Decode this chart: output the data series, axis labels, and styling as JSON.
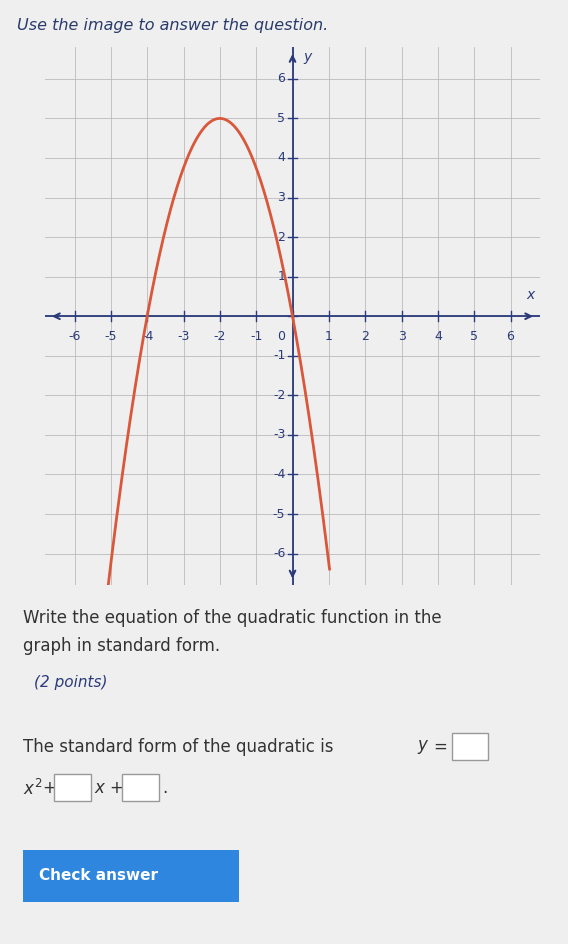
{
  "xlim": [
    -6.8,
    6.8
  ],
  "ylim": [
    -6.8,
    6.8
  ],
  "xticks": [
    -6,
    -5,
    -4,
    -3,
    -2,
    -1,
    0,
    1,
    2,
    3,
    4,
    5,
    6
  ],
  "yticks": [
    -6,
    -5,
    -4,
    -3,
    -2,
    -1,
    0,
    1,
    2,
    3,
    4,
    5,
    6
  ],
  "curve_color": "#d9573a",
  "curve_linewidth": 2.0,
  "a": -1.25,
  "b": -5.0,
  "c": 0.0,
  "x_range": [
    -5.85,
    1.02
  ],
  "background_color": "#efefef",
  "graph_bg": "#e8e8e8",
  "grid_color": "#bbbbbb",
  "axis_color": "#2a3a7a",
  "tick_label_color": "#2a3a7a",
  "tick_fontsize": 9,
  "header_bar_color": "#3a78c9",
  "header_bar_height": 0.007,
  "header_text": "Use the image to answer the question.",
  "header_text_color": "#2a3a6a",
  "question_text_line1": "Write the equation of the quadratic function in the",
  "question_text_line2": "graph in standard form.",
  "points_text": "(2 points)",
  "answer_line_text": "The standard form of the quadratic is ",
  "font_color": "#333333",
  "figsize": [
    5.68,
    9.44
  ],
  "dpi": 100
}
